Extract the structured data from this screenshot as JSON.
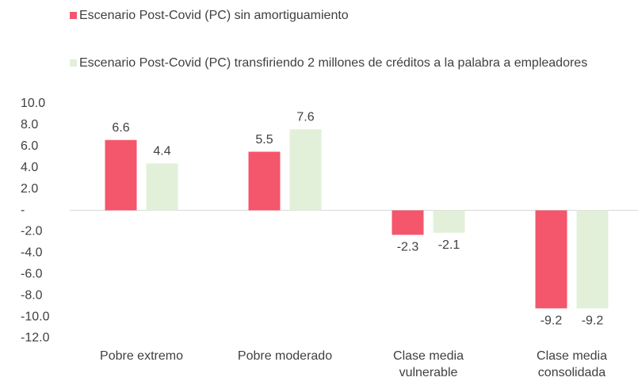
{
  "chart_data": {
    "type": "bar",
    "categories": [
      "Pobre extremo",
      "Pobre moderado",
      "Clase media vulnerable",
      "Clase media consolidada"
    ],
    "series": [
      {
        "name": "Escenario Post-Covid (PC) sin amortiguamiento",
        "color": "#f4566b",
        "values": [
          6.6,
          5.5,
          -2.3,
          -9.2
        ]
      },
      {
        "name": "Escenario Post-Covid (PC) transfiriendo 2 millones de créditos a la palabra a empleadores",
        "color": "#e2f0d9",
        "values": [
          4.4,
          7.6,
          -2.1,
          -9.2
        ]
      }
    ],
    "ylim": [
      -12,
      10
    ],
    "yticks": [
      {
        "value": 10,
        "label": "10.0"
      },
      {
        "value": 8,
        "label": "8.0"
      },
      {
        "value": 6,
        "label": "6.0"
      },
      {
        "value": 4,
        "label": "4.0"
      },
      {
        "value": 2,
        "label": "2.0"
      },
      {
        "value": 0,
        "label": "-"
      },
      {
        "value": -2,
        "label": "-2.0"
      },
      {
        "value": -4,
        "label": "-4.0"
      },
      {
        "value": -6,
        "label": "-6.0"
      },
      {
        "value": -8,
        "label": "-8.0"
      },
      {
        "value": -10,
        "label": "-10.0"
      },
      {
        "value": -12,
        "label": "-12.0"
      }
    ],
    "grid": false,
    "legend": "top"
  }
}
